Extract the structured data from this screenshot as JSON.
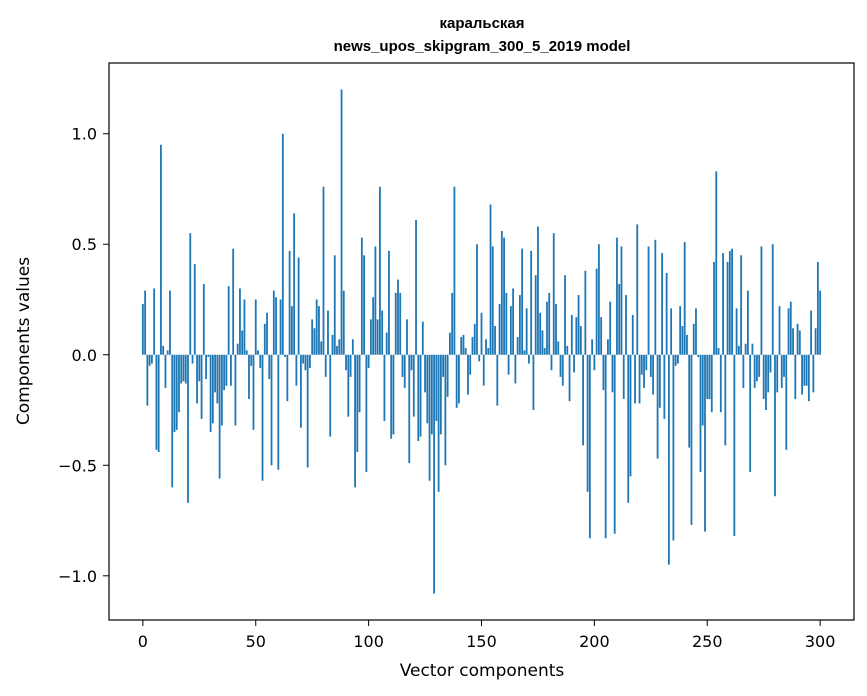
{
  "chart_data": {
    "type": "bar",
    "title_lines": [
      "каральская",
      "news_upos_skipgram_300_5_2019 model"
    ],
    "xlabel": "Vector components",
    "ylabel": "Components values",
    "xlim": [
      -15,
      315
    ],
    "ylim": [
      -1.2,
      1.32
    ],
    "xticks": [
      0,
      50,
      100,
      150,
      200,
      250,
      300
    ],
    "xtick_labels": [
      "0",
      "50",
      "100",
      "150",
      "200",
      "250",
      "300"
    ],
    "yticks": [
      -1.0,
      -0.5,
      0.0,
      0.5,
      1.0
    ],
    "ytick_labels": [
      "−1.0",
      "−0.5",
      "0.0",
      "0.5",
      "1.0"
    ],
    "bar_color": "#1f77b4",
    "values": [
      0.23,
      0.29,
      -0.23,
      -0.05,
      -0.04,
      0.3,
      -0.43,
      -0.44,
      0.95,
      0.04,
      -0.15,
      0.02,
      0.29,
      -0.6,
      -0.35,
      -0.34,
      -0.26,
      -0.13,
      -0.12,
      -0.13,
      -0.67,
      0.55,
      -0.04,
      0.41,
      -0.22,
      -0.12,
      -0.29,
      0.32,
      -0.11,
      -0.01,
      -0.35,
      -0.31,
      -0.17,
      -0.22,
      -0.56,
      -0.32,
      -0.16,
      -0.14,
      0.31,
      -0.14,
      0.48,
      -0.32,
      0.05,
      0.3,
      0.11,
      0.25,
      0.02,
      -0.2,
      -0.05,
      -0.34,
      0.25,
      0.02,
      -0.06,
      -0.57,
      0.14,
      0.19,
      -0.11,
      -0.5,
      0.29,
      0.26,
      -0.52,
      0.25,
      1.0,
      -0.01,
      -0.21,
      0.47,
      0.22,
      0.64,
      -0.14,
      0.44,
      -0.33,
      -0.04,
      -0.07,
      -0.51,
      -0.06,
      0.16,
      0.12,
      0.25,
      0.22,
      0.06,
      0.76,
      -0.1,
      0.2,
      -0.37,
      0.09,
      0.45,
      0.04,
      0.07,
      1.2,
      0.29,
      -0.07,
      -0.28,
      -0.1,
      0.07,
      -0.6,
      -0.44,
      -0.26,
      0.53,
      0.45,
      -0.53,
      -0.06,
      0.16,
      0.26,
      0.49,
      0.16,
      0.76,
      0.2,
      -0.3,
      0.1,
      0.47,
      -0.38,
      -0.36,
      0.28,
      0.34,
      0.28,
      -0.1,
      -0.15,
      0.16,
      -0.49,
      -0.07,
      -0.28,
      0.61,
      -0.39,
      -0.37,
      0.15,
      -0.17,
      -0.31,
      -0.57,
      -0.36,
      -1.08,
      -0.3,
      -0.62,
      -0.36,
      -0.1,
      -0.5,
      -0.19,
      0.1,
      0.28,
      0.76,
      -0.24,
      -0.22,
      0.08,
      0.09,
      0.03,
      -0.18,
      -0.09,
      0.08,
      0.14,
      0.5,
      -0.03,
      0.19,
      -0.14,
      0.07,
      0.03,
      0.68,
      0.49,
      0.13,
      -0.23,
      0.23,
      0.56,
      0.53,
      0.28,
      -0.09,
      0.22,
      0.3,
      -0.13,
      0.08,
      0.27,
      0.48,
      0.02,
      0.21,
      -0.04,
      0.47,
      -0.25,
      0.36,
      0.58,
      0.19,
      0.11,
      0.03,
      0.24,
      0.28,
      -0.07,
      0.55,
      0.23,
      0.06,
      -0.1,
      -0.14,
      0.36,
      0.04,
      -0.21,
      0.18,
      -0.08,
      0.17,
      0.27,
      0.13,
      -0.41,
      0.38,
      -0.62,
      -0.83,
      0.07,
      -0.07,
      0.39,
      0.5,
      0.17,
      -0.16,
      -0.83,
      0.07,
      0.24,
      -0.17,
      -0.81,
      0.53,
      0.32,
      0.49,
      -0.2,
      0.27,
      -0.67,
      -0.55,
      0.18,
      -0.22,
      0.59,
      -0.22,
      -0.09,
      -0.15,
      -0.07,
      0.49,
      -0.1,
      -0.18,
      0.52,
      -0.47,
      -0.24,
      0.46,
      -0.29,
      0.37,
      -0.95,
      0.21,
      -0.84,
      -0.05,
      -0.04,
      0.22,
      0.13,
      0.51,
      0.09,
      -0.42,
      -0.77,
      0.14,
      0.21,
      -0.01,
      -0.53,
      -0.32,
      -0.8,
      -0.2,
      -0.2,
      -0.26,
      0.42,
      0.83,
      0.03,
      -0.26,
      0.46,
      -0.41,
      0.42,
      0.47,
      0.48,
      -0.82,
      0.21,
      0.04,
      0.45,
      -0.15,
      0.05,
      0.29,
      -0.53,
      0.05,
      -0.15,
      -0.12,
      -0.1,
      0.49,
      -0.2,
      -0.25,
      -0.17,
      -0.08,
      0.5,
      -0.64,
      -0.17,
      0.22,
      -0.15,
      -0.1,
      -0.43,
      0.21,
      0.24,
      0.12,
      -0.2,
      0.14,
      0.11,
      -0.18,
      -0.14,
      -0.14,
      -0.21,
      0.2,
      -0.17,
      0.12,
      0.42,
      0.29
    ]
  }
}
